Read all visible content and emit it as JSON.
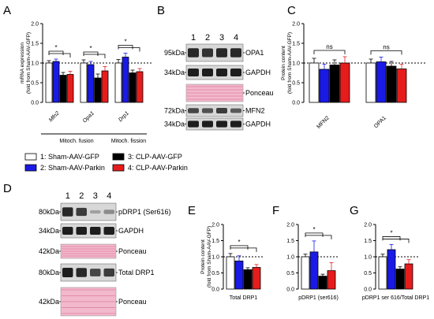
{
  "panel_letters": {
    "A": "A",
    "B": "B",
    "C": "C",
    "D": "D",
    "E": "E",
    "F": "F",
    "G": "G"
  },
  "colors": {
    "g1": "#ffffff",
    "g2": "#1a1ae6",
    "g3": "#000000",
    "g4": "#e61c1c",
    "ponceau": "#f2b9cc",
    "band": "#2a2a2a"
  },
  "legend": [
    {
      "label": "1: Sham-AAV-GFP",
      "color": "#ffffff"
    },
    {
      "label": "2: Sham-AAV-Parkin",
      "color": "#1a1ae6"
    },
    {
      "label": "3: CLP-AAV-GFP",
      "color": "#000000"
    },
    {
      "label": "4: CLP-AAV-Parkin",
      "color": "#e61c1c"
    }
  ],
  "chart_data": [
    {
      "panel": "A",
      "type": "bar",
      "ylabel": [
        "mRNA expression",
        "(fold from Sham-AAV-GFP)"
      ],
      "ylim": [
        0,
        2.0
      ],
      "yticks": [
        "0.0",
        "0.5",
        "1.0",
        "1.5",
        "2.0"
      ],
      "refline": 1.0,
      "categories": [
        "Mfn2",
        "Opa1",
        "Drp1"
      ],
      "series": [
        {
          "values": [
            1.0,
            1.0,
            1.0
          ],
          "err": [
            0.06,
            0.08,
            0.09
          ]
        },
        {
          "values": [
            1.04,
            0.96,
            1.15
          ],
          "err": [
            0.06,
            0.08,
            0.1
          ]
        },
        {
          "values": [
            0.69,
            0.62,
            0.75
          ],
          "err": [
            0.07,
            0.1,
            0.07
          ]
        },
        {
          "values": [
            0.71,
            0.8,
            0.78
          ],
          "err": [
            0.08,
            0.11,
            0.08
          ]
        }
      ],
      "sig": [
        {
          "from": 0,
          "to": 2,
          "cat": 0,
          "label": "*"
        },
        {
          "from": 0,
          "to": 2,
          "cat": 1,
          "label": "*"
        },
        {
          "from": 0,
          "to": 2,
          "cat": 2,
          "label": "*"
        }
      ],
      "groups": [
        {
          "label": "Mitoch. fusion",
          "cats": [
            0,
            1
          ]
        },
        {
          "label": "Mitoch. fission",
          "cats": [
            2
          ]
        }
      ]
    },
    {
      "panel": "C",
      "type": "bar",
      "ylabel": [
        "Protein content",
        "(fold from Sham-AAV-GFP)"
      ],
      "ylim": [
        0,
        2.0
      ],
      "yticks": [
        "0.0",
        "0.5",
        "1.0",
        "1.5",
        "2.0"
      ],
      "refline": 1.0,
      "categories": [
        "MFN2",
        "OPA1"
      ],
      "series": [
        {
          "values": [
            1.0,
            1.0
          ],
          "err": [
            0.12,
            0.1
          ]
        },
        {
          "values": [
            0.84,
            1.03
          ],
          "err": [
            0.13,
            0.12
          ]
        },
        {
          "values": [
            0.95,
            0.92
          ],
          "err": [
            0.13,
            0.12
          ]
        },
        {
          "values": [
            1.0,
            0.85
          ],
          "err": [
            0.16,
            0.12
          ]
        }
      ],
      "sig": [
        {
          "from": 0,
          "to": 3,
          "cat": 0,
          "label": "ns"
        },
        {
          "from": 0,
          "to": 3,
          "cat": 1,
          "label": "ns"
        }
      ]
    },
    {
      "panel": "E",
      "type": "bar",
      "ylabel": [
        "Protein content",
        "(fold from Sham-AAV-GFP)"
      ],
      "ylim": [
        0,
        2.0
      ],
      "yticks": [
        "0.0",
        "0.5",
        "1.0",
        "1.5",
        "2.0"
      ],
      "refline": 1.0,
      "categories": [
        "Total DRP1"
      ],
      "series": [
        {
          "values": [
            1.0
          ],
          "err": [
            0.1
          ]
        },
        {
          "values": [
            0.87
          ],
          "err": [
            0.16
          ]
        },
        {
          "values": [
            0.6
          ],
          "err": [
            0.06
          ]
        },
        {
          "values": [
            0.67
          ],
          "err": [
            0.09
          ]
        }
      ],
      "sig": [
        {
          "from": 0,
          "to": 2,
          "cat": 0,
          "label": "*"
        }
      ]
    },
    {
      "panel": "F",
      "type": "bar",
      "ylabel": [],
      "ylim": [
        0,
        2.0
      ],
      "yticks": [
        "0.0",
        "0.5",
        "1.0",
        "1.5",
        "2.0"
      ],
      "refline": 1.0,
      "categories": [
        "pDRP1 (ser616)"
      ],
      "series": [
        {
          "values": [
            1.0
          ],
          "err": [
            0.08
          ]
        },
        {
          "values": [
            1.15
          ],
          "err": [
            0.34
          ]
        },
        {
          "values": [
            0.4
          ],
          "err": [
            0.06
          ]
        },
        {
          "values": [
            0.57
          ],
          "err": [
            0.25
          ]
        }
      ],
      "sig": [
        {
          "from": 0,
          "to": 2,
          "cat": 0,
          "label": "*"
        }
      ]
    },
    {
      "panel": "G",
      "type": "bar",
      "ylabel": [],
      "ylim": [
        0,
        2.0
      ],
      "yticks": [
        "0.0",
        "0.5",
        "1.0",
        "1.5",
        "2.0"
      ],
      "refline": 1.0,
      "categories": [
        "pDRP1 ser 616/Total DRP1"
      ],
      "series": [
        {
          "values": [
            1.0
          ],
          "err": [
            0.08
          ]
        },
        {
          "values": [
            1.22
          ],
          "err": [
            0.16
          ]
        },
        {
          "values": [
            0.62
          ],
          "err": [
            0.07
          ]
        },
        {
          "values": [
            0.78
          ],
          "err": [
            0.13
          ]
        }
      ],
      "sig": [
        {
          "from": 0,
          "to": 2,
          "cat": 0,
          "label": "*"
        }
      ]
    }
  ],
  "blot_B": {
    "lanes": [
      "1",
      "2",
      "3",
      "4"
    ],
    "strips": [
      {
        "kda": "95kDa",
        "name": "OPA1",
        "kind": "band",
        "intensity": [
          0.95,
          0.9,
          0.95,
          0.95
        ]
      },
      {
        "kda": "34kDa",
        "name": "GAPDH",
        "kind": "band",
        "intensity": [
          1,
          1,
          1,
          1
        ]
      },
      {
        "kda": "",
        "name": "Ponceau",
        "kind": "ponceau"
      },
      {
        "kda": "72kDa",
        "name": "MFN2",
        "kind": "band",
        "intensity": [
          0.8,
          0.75,
          0.85,
          0.7
        ]
      },
      {
        "kda": "34kDa",
        "name": "GAPDH",
        "kind": "band",
        "intensity": [
          1,
          1,
          1,
          1
        ]
      }
    ]
  },
  "blot_D": {
    "lanes": [
      "1",
      "2",
      "3",
      "4"
    ],
    "strips": [
      {
        "kda": "80kDa",
        "name": "pDRP1 (Ser616)",
        "kind": "band",
        "intensity": [
          0.95,
          0.85,
          0.35,
          0.45
        ]
      },
      {
        "kda": "34kDa",
        "name": "GAPDH",
        "kind": "band",
        "intensity": [
          1,
          1,
          1,
          1
        ]
      },
      {
        "kda": "42kDa",
        "name": "Ponceau",
        "kind": "ponceau"
      },
      {
        "kda": "80kDa",
        "name": "Total DRP1",
        "kind": "band",
        "intensity": [
          1,
          0.95,
          0.8,
          0.85
        ]
      },
      {
        "kda": "42kDa",
        "name": "Ponceau",
        "kind": "ponceau"
      }
    ]
  }
}
